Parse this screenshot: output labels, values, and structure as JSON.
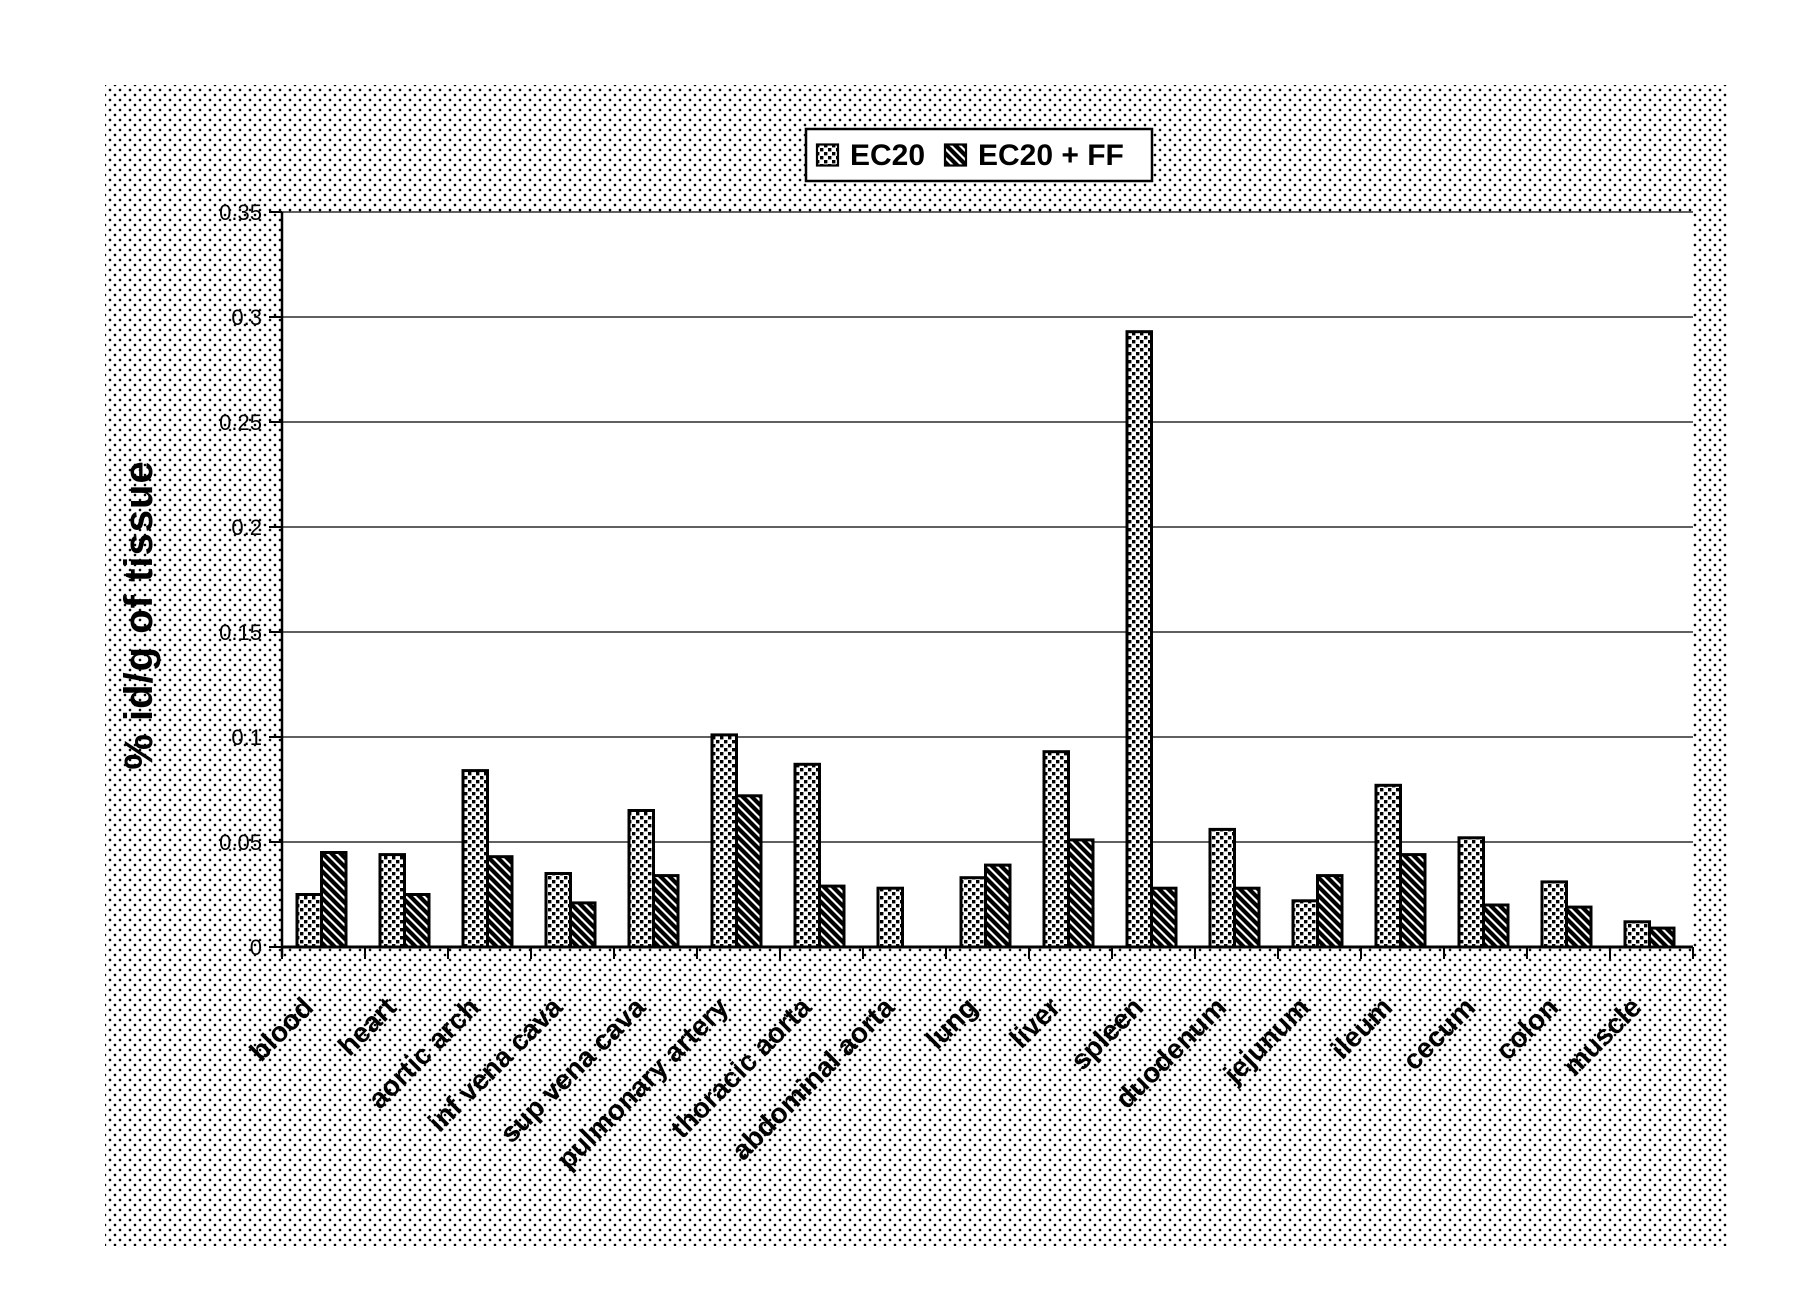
{
  "figure": {
    "background": "#ffffff",
    "ink": "#000000",
    "panel_style": "stippled-halftone"
  },
  "legend": {
    "items": [
      {
        "label": "EC20",
        "swatch": "dotted-diamond-pattern"
      },
      {
        "label": "EC20 + FF",
        "swatch": "diagonal-hatch-pattern"
      }
    ]
  },
  "chart_data": {
    "type": "bar",
    "title": "",
    "xlabel": "",
    "ylabel": "% id/g of tissue",
    "ylim": [
      0,
      0.35
    ],
    "yticks": [
      0,
      0.05,
      0.1,
      0.15,
      0.2,
      0.25,
      0.3,
      0.35
    ],
    "ytick_labels": [
      "0",
      "0.05",
      "0.1",
      "0.15",
      "0.2",
      "0.25",
      "0.3",
      "0.35"
    ],
    "grid": true,
    "legend_position": "top-center",
    "categories": [
      "blood",
      "heart",
      "aortic arch",
      "inf vena cava",
      "sup vena cava",
      "pulmonary artery",
      "thoracic aorta",
      "abdominal aorta",
      "lung",
      "liver",
      "spleen",
      "duodenum",
      "jejunum",
      "ileum",
      "cecum",
      "colon",
      "muscle"
    ],
    "series": [
      {
        "name": "EC20",
        "pattern": "dotted-diamond",
        "values": [
          0.025,
          0.044,
          0.084,
          0.035,
          0.065,
          0.101,
          0.087,
          0.028,
          0.033,
          0.093,
          0.293,
          0.056,
          0.022,
          0.077,
          0.052,
          0.031,
          0.012
        ]
      },
      {
        "name": "EC20 + FF",
        "pattern": "diagonal-hatch",
        "values": [
          0.045,
          0.025,
          0.043,
          0.021,
          0.034,
          0.072,
          0.029,
          null,
          0.039,
          0.051,
          0.028,
          0.028,
          0.034,
          0.044,
          0.02,
          0.019,
          0.009
        ]
      }
    ]
  }
}
